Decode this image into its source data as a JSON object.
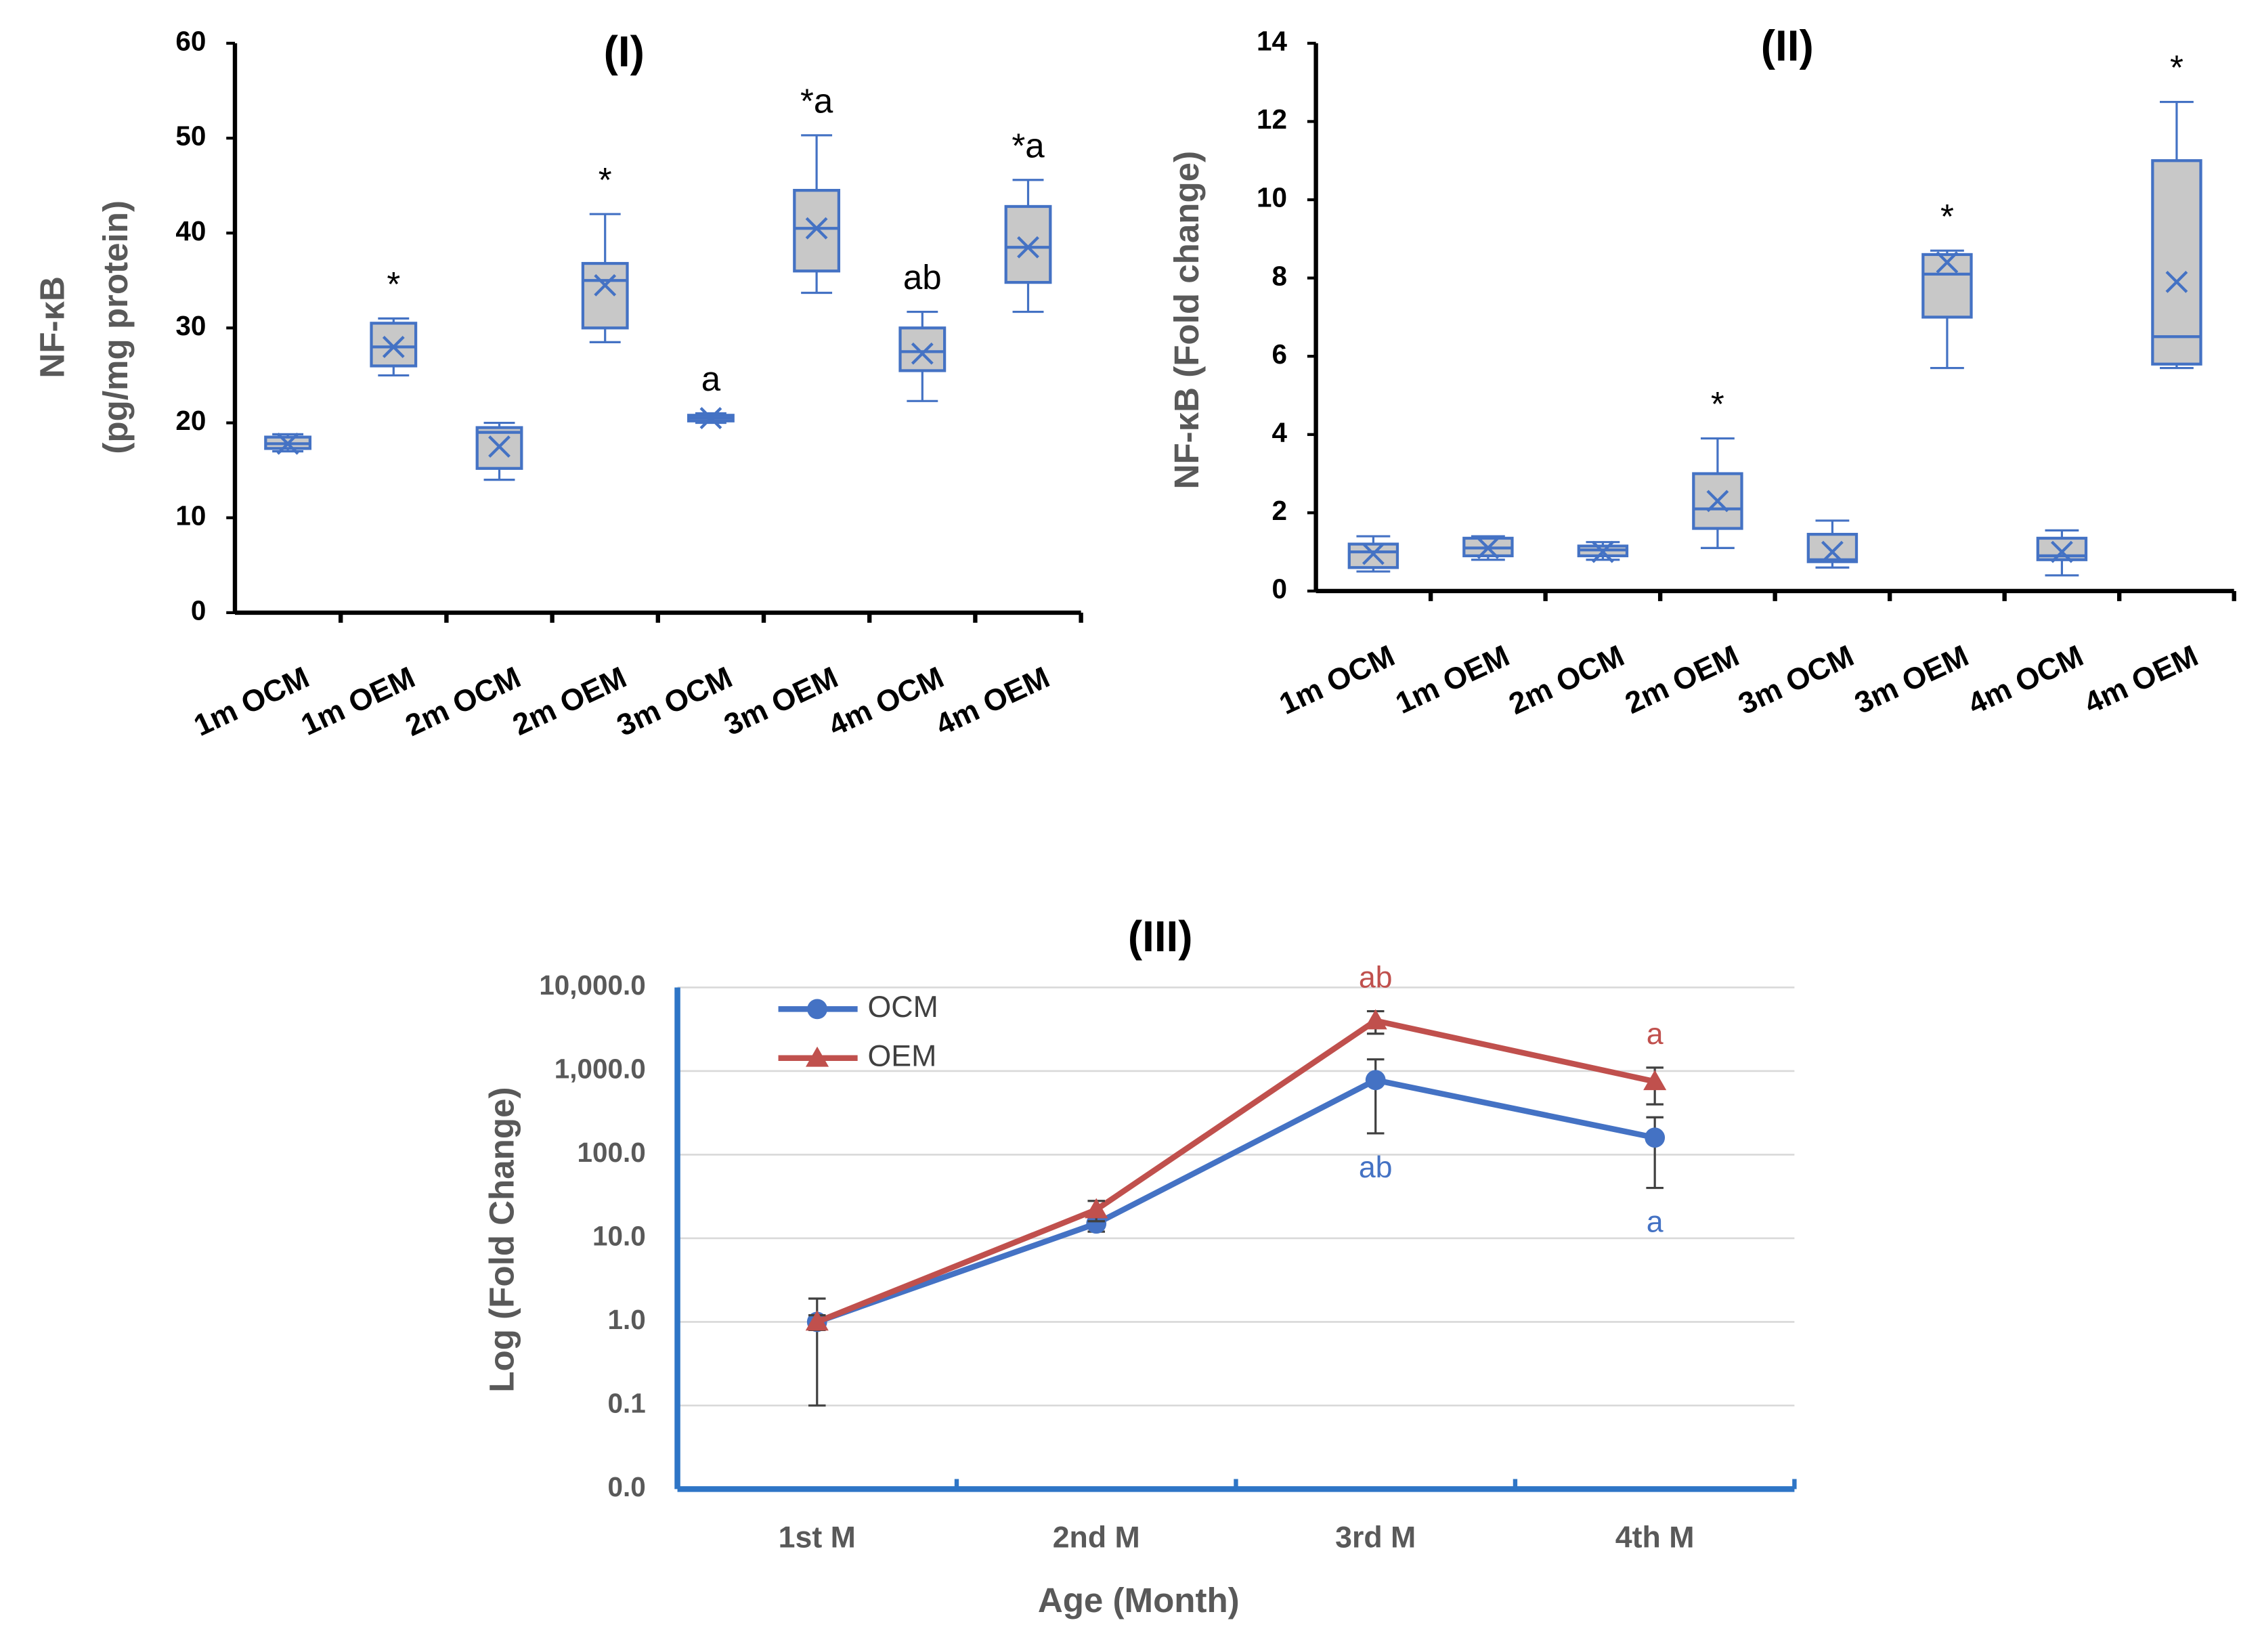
{
  "chart_data": [
    {
      "type": "box",
      "title": "(I)",
      "ylabel": [
        "NF-κB",
        "(pg/mg protein)"
      ],
      "categories": [
        "1m OCM",
        "1m OEM",
        "2m OCM",
        "2m OEM",
        "3m OCM",
        "3m OEM",
        "4m OCM",
        "4m OEM"
      ],
      "boxes": [
        {
          "min": 17,
          "q1": 17.3,
          "median": 17.8,
          "q3": 18.5,
          "max": 18.8,
          "mean": 17.8
        },
        {
          "min": 25,
          "q1": 26,
          "median": 28,
          "q3": 30.5,
          "max": 31,
          "mean": 28
        },
        {
          "min": 14,
          "q1": 15.2,
          "median": 19,
          "q3": 19.5,
          "max": 20,
          "mean": 17.5
        },
        {
          "min": 28.5,
          "q1": 30,
          "median": 35,
          "q3": 36.8,
          "max": 42,
          "mean": 34.5
        },
        {
          "min": 20,
          "q1": 20.2,
          "median": 20.5,
          "q3": 20.8,
          "max": 21,
          "mean": 20.5
        },
        {
          "min": 33.7,
          "q1": 36,
          "median": 40.5,
          "q3": 44.5,
          "max": 50.3,
          "mean": 40.5
        },
        {
          "min": 22.3,
          "q1": 25.5,
          "median": 27.5,
          "q3": 30,
          "max": 31.7,
          "mean": 27.3
        },
        {
          "min": 31.7,
          "q1": 34.8,
          "median": 38.5,
          "q3": 42.8,
          "max": 45.6,
          "mean": 38.5
        }
      ],
      "annotations": [
        {
          "category": "1m OEM",
          "text": "*"
        },
        {
          "category": "2m OEM",
          "text": "*"
        },
        {
          "category": "3m OCM",
          "text": "a"
        },
        {
          "category": "3m OEM",
          "text": "*a"
        },
        {
          "category": "4m OCM",
          "text": "ab"
        },
        {
          "category": "4m OEM",
          "text": "*a"
        }
      ],
      "color": "#4472c4",
      "box_fill": "#c8c8c8",
      "ylim": [
        0,
        60
      ],
      "yticks": [
        0,
        10,
        20,
        30,
        40,
        50,
        60
      ]
    },
    {
      "type": "box",
      "title": "(II)",
      "ylabel": [
        "NF-κB (Fold change)"
      ],
      "categories": [
        "1m OCM",
        "1m OEM",
        "2m OCM",
        "2m OEM",
        "3m OCM",
        "3m OEM",
        "4m OCM",
        "4m OEM"
      ],
      "boxes": [
        {
          "min": 0.5,
          "q1": 0.6,
          "median": 1.0,
          "q3": 1.2,
          "max": 1.4,
          "mean": 0.95
        },
        {
          "min": 0.8,
          "q1": 0.9,
          "median": 1.1,
          "q3": 1.35,
          "max": 1.4,
          "mean": 1.1
        },
        {
          "min": 0.8,
          "q1": 0.9,
          "median": 1.05,
          "q3": 1.15,
          "max": 1.25,
          "mean": 1.0
        },
        {
          "min": 1.1,
          "q1": 1.6,
          "median": 2.1,
          "q3": 3.0,
          "max": 3.9,
          "mean": 2.3
        },
        {
          "min": 0.6,
          "q1": 0.75,
          "median": 0.8,
          "q3": 1.45,
          "max": 1.8,
          "mean": 1.0
        },
        {
          "min": 5.7,
          "q1": 7.0,
          "median": 8.1,
          "q3": 8.6,
          "max": 8.7,
          "mean": 8.4
        },
        {
          "min": 0.4,
          "q1": 0.8,
          "median": 0.9,
          "q3": 1.35,
          "max": 1.55,
          "mean": 1.0
        },
        {
          "min": 5.7,
          "q1": 5.8,
          "median": 6.5,
          "q3": 11.0,
          "max": 12.5,
          "mean": 7.9
        }
      ],
      "annotations": [
        {
          "category": "2m OEM",
          "text": "*"
        },
        {
          "category": "3m OEM",
          "text": "*"
        },
        {
          "category": "4m OEM",
          "text": "*"
        }
      ],
      "color": "#4472c4",
      "box_fill": "#c8c8c8",
      "ylim": [
        0,
        14
      ],
      "yticks": [
        0,
        2,
        4,
        6,
        8,
        10,
        12,
        14
      ]
    },
    {
      "type": "line",
      "title": "(III)",
      "ylabel": "Log (Fold Change)",
      "xlabel": "Age (Month)",
      "categories": [
        "1st M",
        "2nd M",
        "3rd M",
        "4th M"
      ],
      "series": [
        {
          "name": "OCM",
          "color": "#4472c4",
          "marker": "circle",
          "values": [
            1,
            15,
            780,
            160
          ],
          "errors": [
            0.9,
            3,
            600,
            120
          ],
          "point_labels": [
            null,
            null,
            "ab",
            "a"
          ],
          "label_position": "below"
        },
        {
          "name": "OEM",
          "color": "#c0504d",
          "marker": "triangle",
          "values": [
            1,
            22,
            4000,
            750
          ],
          "errors": [
            0.2,
            6,
            1200,
            350
          ],
          "point_labels": [
            null,
            null,
            "ab",
            "a"
          ],
          "label_position": "above"
        }
      ],
      "log_scale": true,
      "grid": true,
      "legend": "top-left",
      "ylim": [
        0.01,
        10000
      ],
      "yticks": [
        {
          "value": 0.01,
          "label": "0.0"
        },
        0.1,
        {
          "value": 1,
          "label": "1.0"
        },
        {
          "value": 10,
          "label": "10.0"
        },
        {
          "value": 100,
          "label": "100.0"
        },
        {
          "value": 1000,
          "label": "1,000.0"
        },
        {
          "value": 10000,
          "label": "10,000.0"
        }
      ]
    }
  ]
}
